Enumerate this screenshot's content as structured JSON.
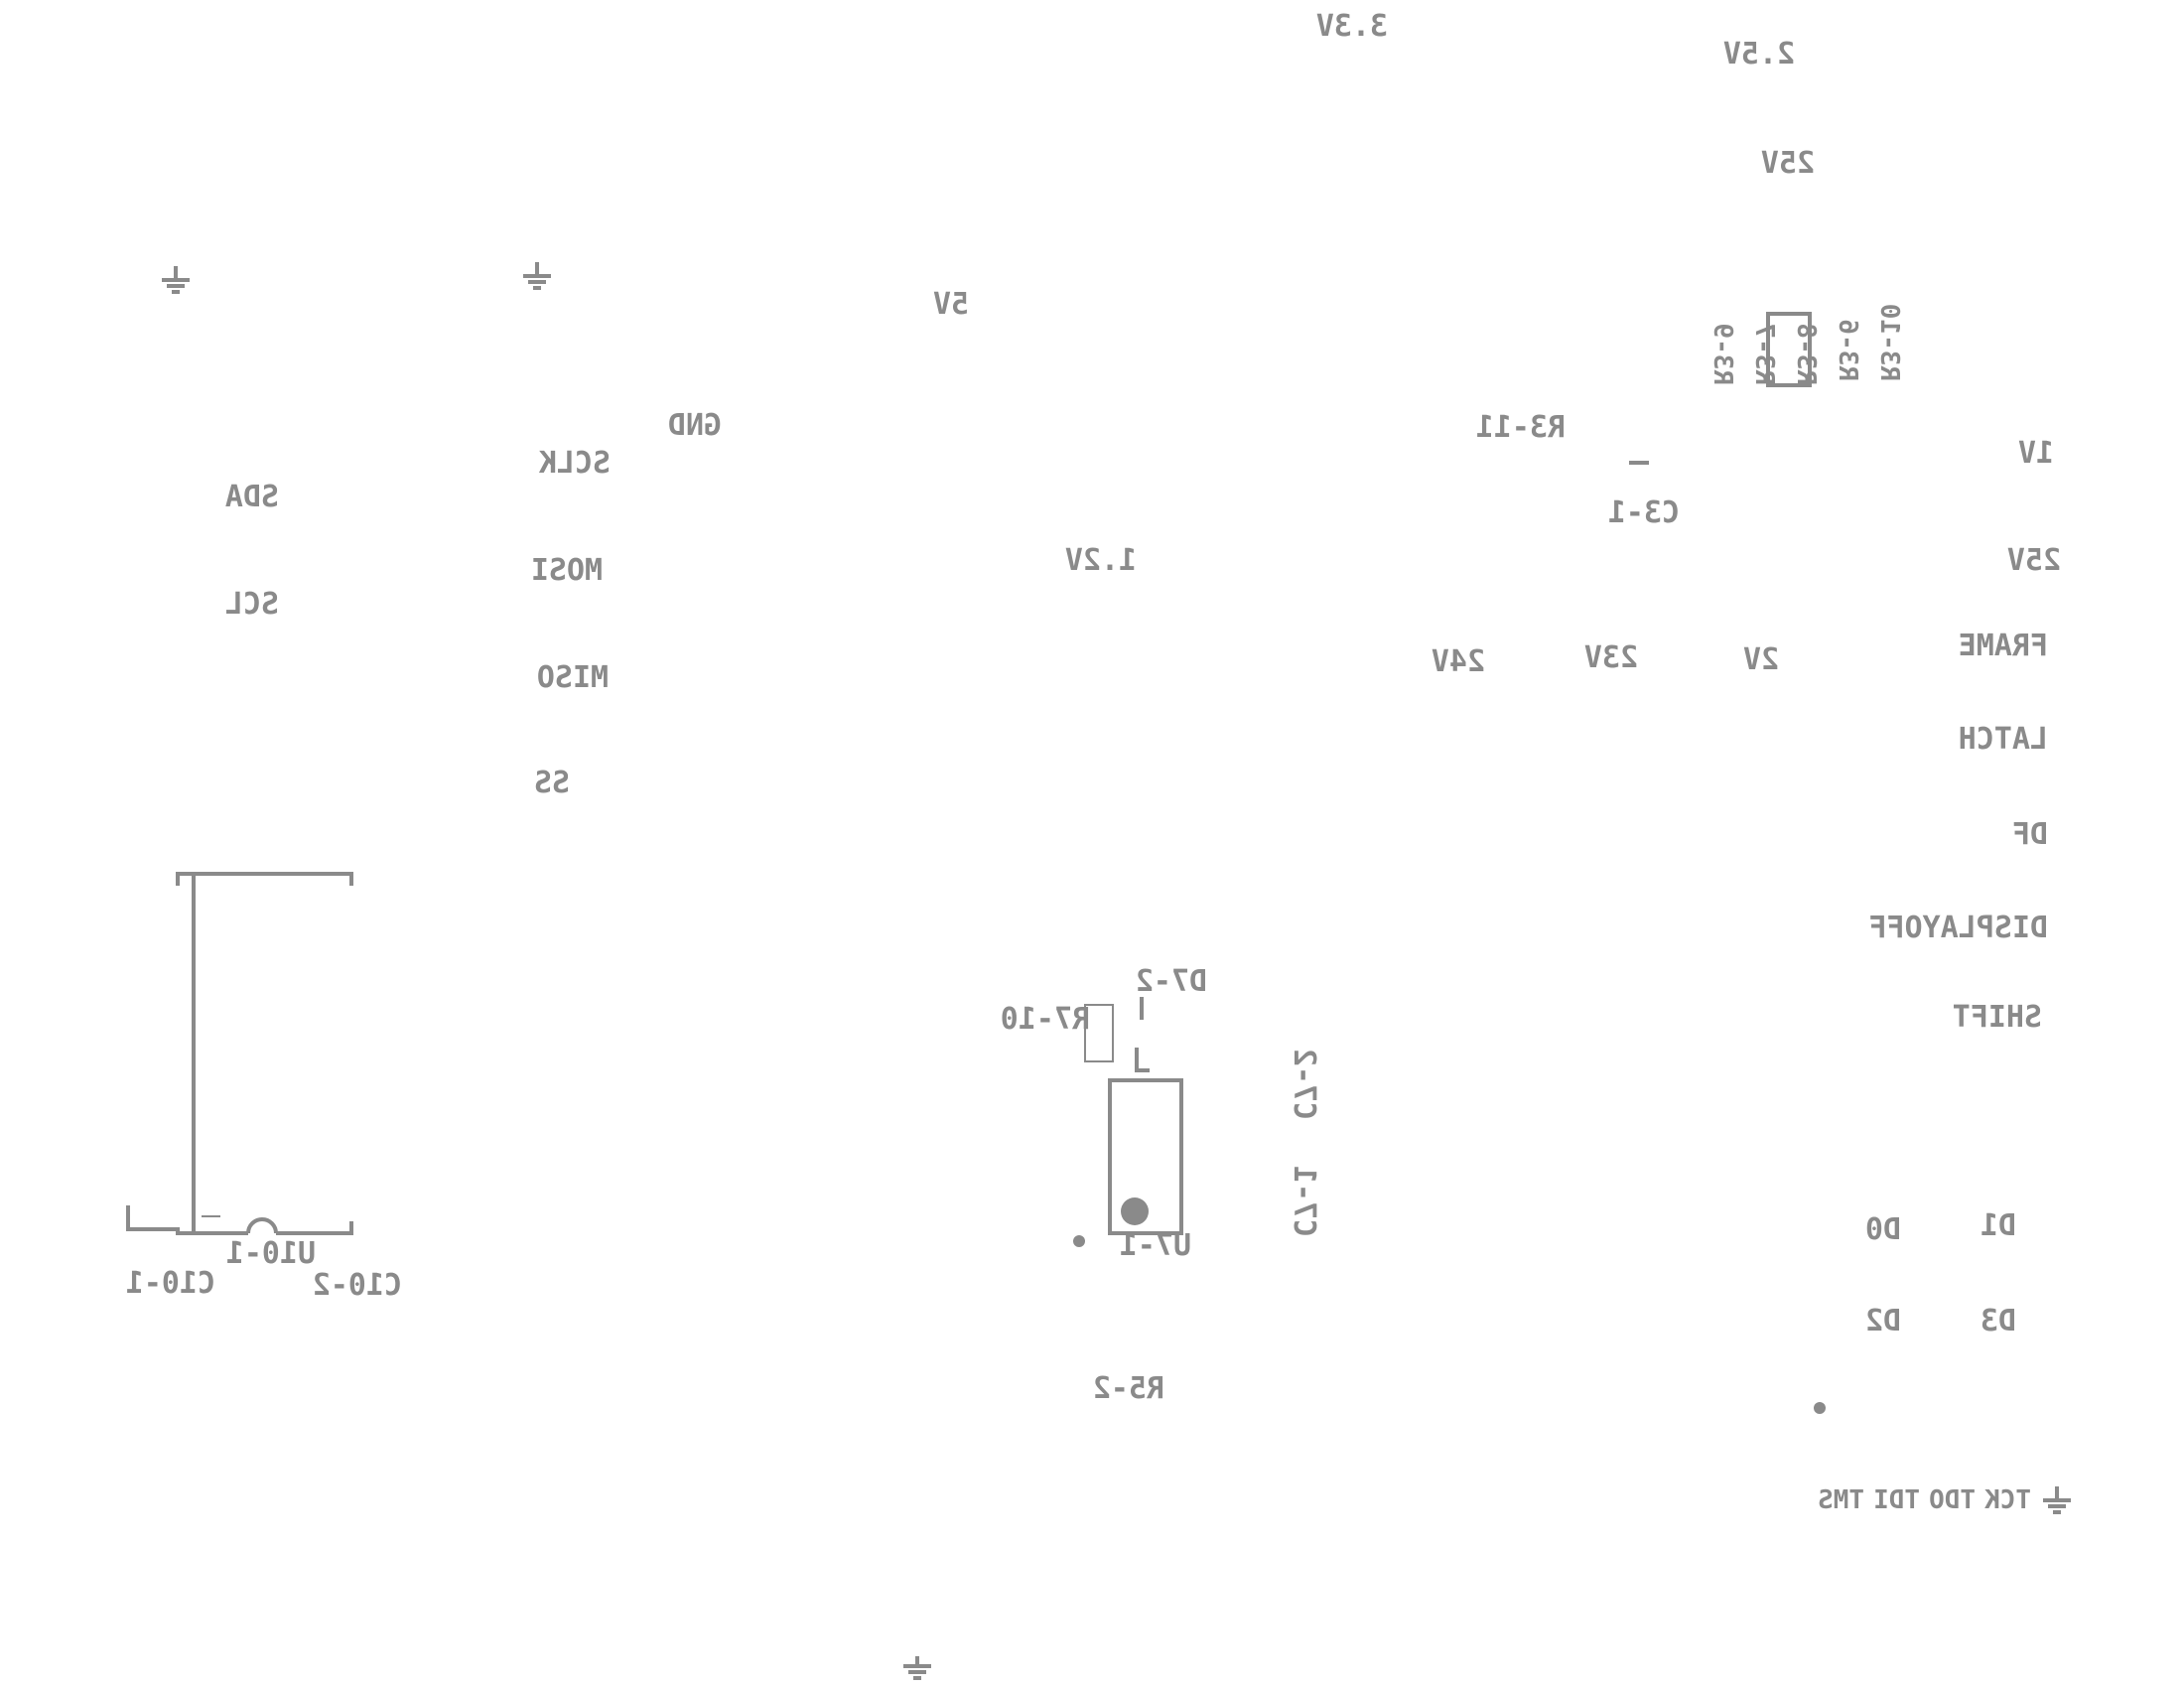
{
  "colors": {
    "silkscreen": "#8a8a8a",
    "background": "#ffffff"
  },
  "power": {
    "v3_3": "3.3V",
    "v2_5": "2.5V",
    "v25_top": "25V",
    "v5": "5V",
    "v1_2": "1.2V",
    "v1": "1V",
    "v25_right": "25V",
    "v24": "24V",
    "v23": "23V",
    "v2": "2V",
    "gnd": "GND"
  },
  "i2c": {
    "sda": "SDA",
    "scl": "SCL"
  },
  "spi": {
    "sclk": "SCLK",
    "mosi": "MOSI",
    "miso": "MISO",
    "ss": "SS"
  },
  "display": {
    "frame": "FRAME",
    "latch": "LATCH",
    "df": "DF",
    "displayoff": "DISPLAYOFF",
    "shift": "SHIFT",
    "d0": "D0",
    "d1": "D1",
    "d2": "D2",
    "d3": "D3"
  },
  "jtag": {
    "tck": "TCK",
    "tdo": "TDO",
    "tdi": "TDI",
    "tms": "TMS"
  },
  "refdes": {
    "r3_11": "R3-11",
    "c3_1": "C3-1",
    "r3_9": "R3-9",
    "r3_7": "R3-7",
    "r3_8": "R3-8",
    "r3_6": "R3-6",
    "r3_10": "R3-10",
    "d7_2": "D7-2",
    "r7_10": "R7-10",
    "u7_1": "U7-1",
    "c7_2": "C7-2",
    "c7_1": "C7-1",
    "r5_2": "R5-2",
    "u10_1": "U10-1",
    "c10_1": "C10-1",
    "c10_2": "C10-2"
  },
  "icons": [
    "ground-icon",
    "pin1-marker-icon"
  ]
}
